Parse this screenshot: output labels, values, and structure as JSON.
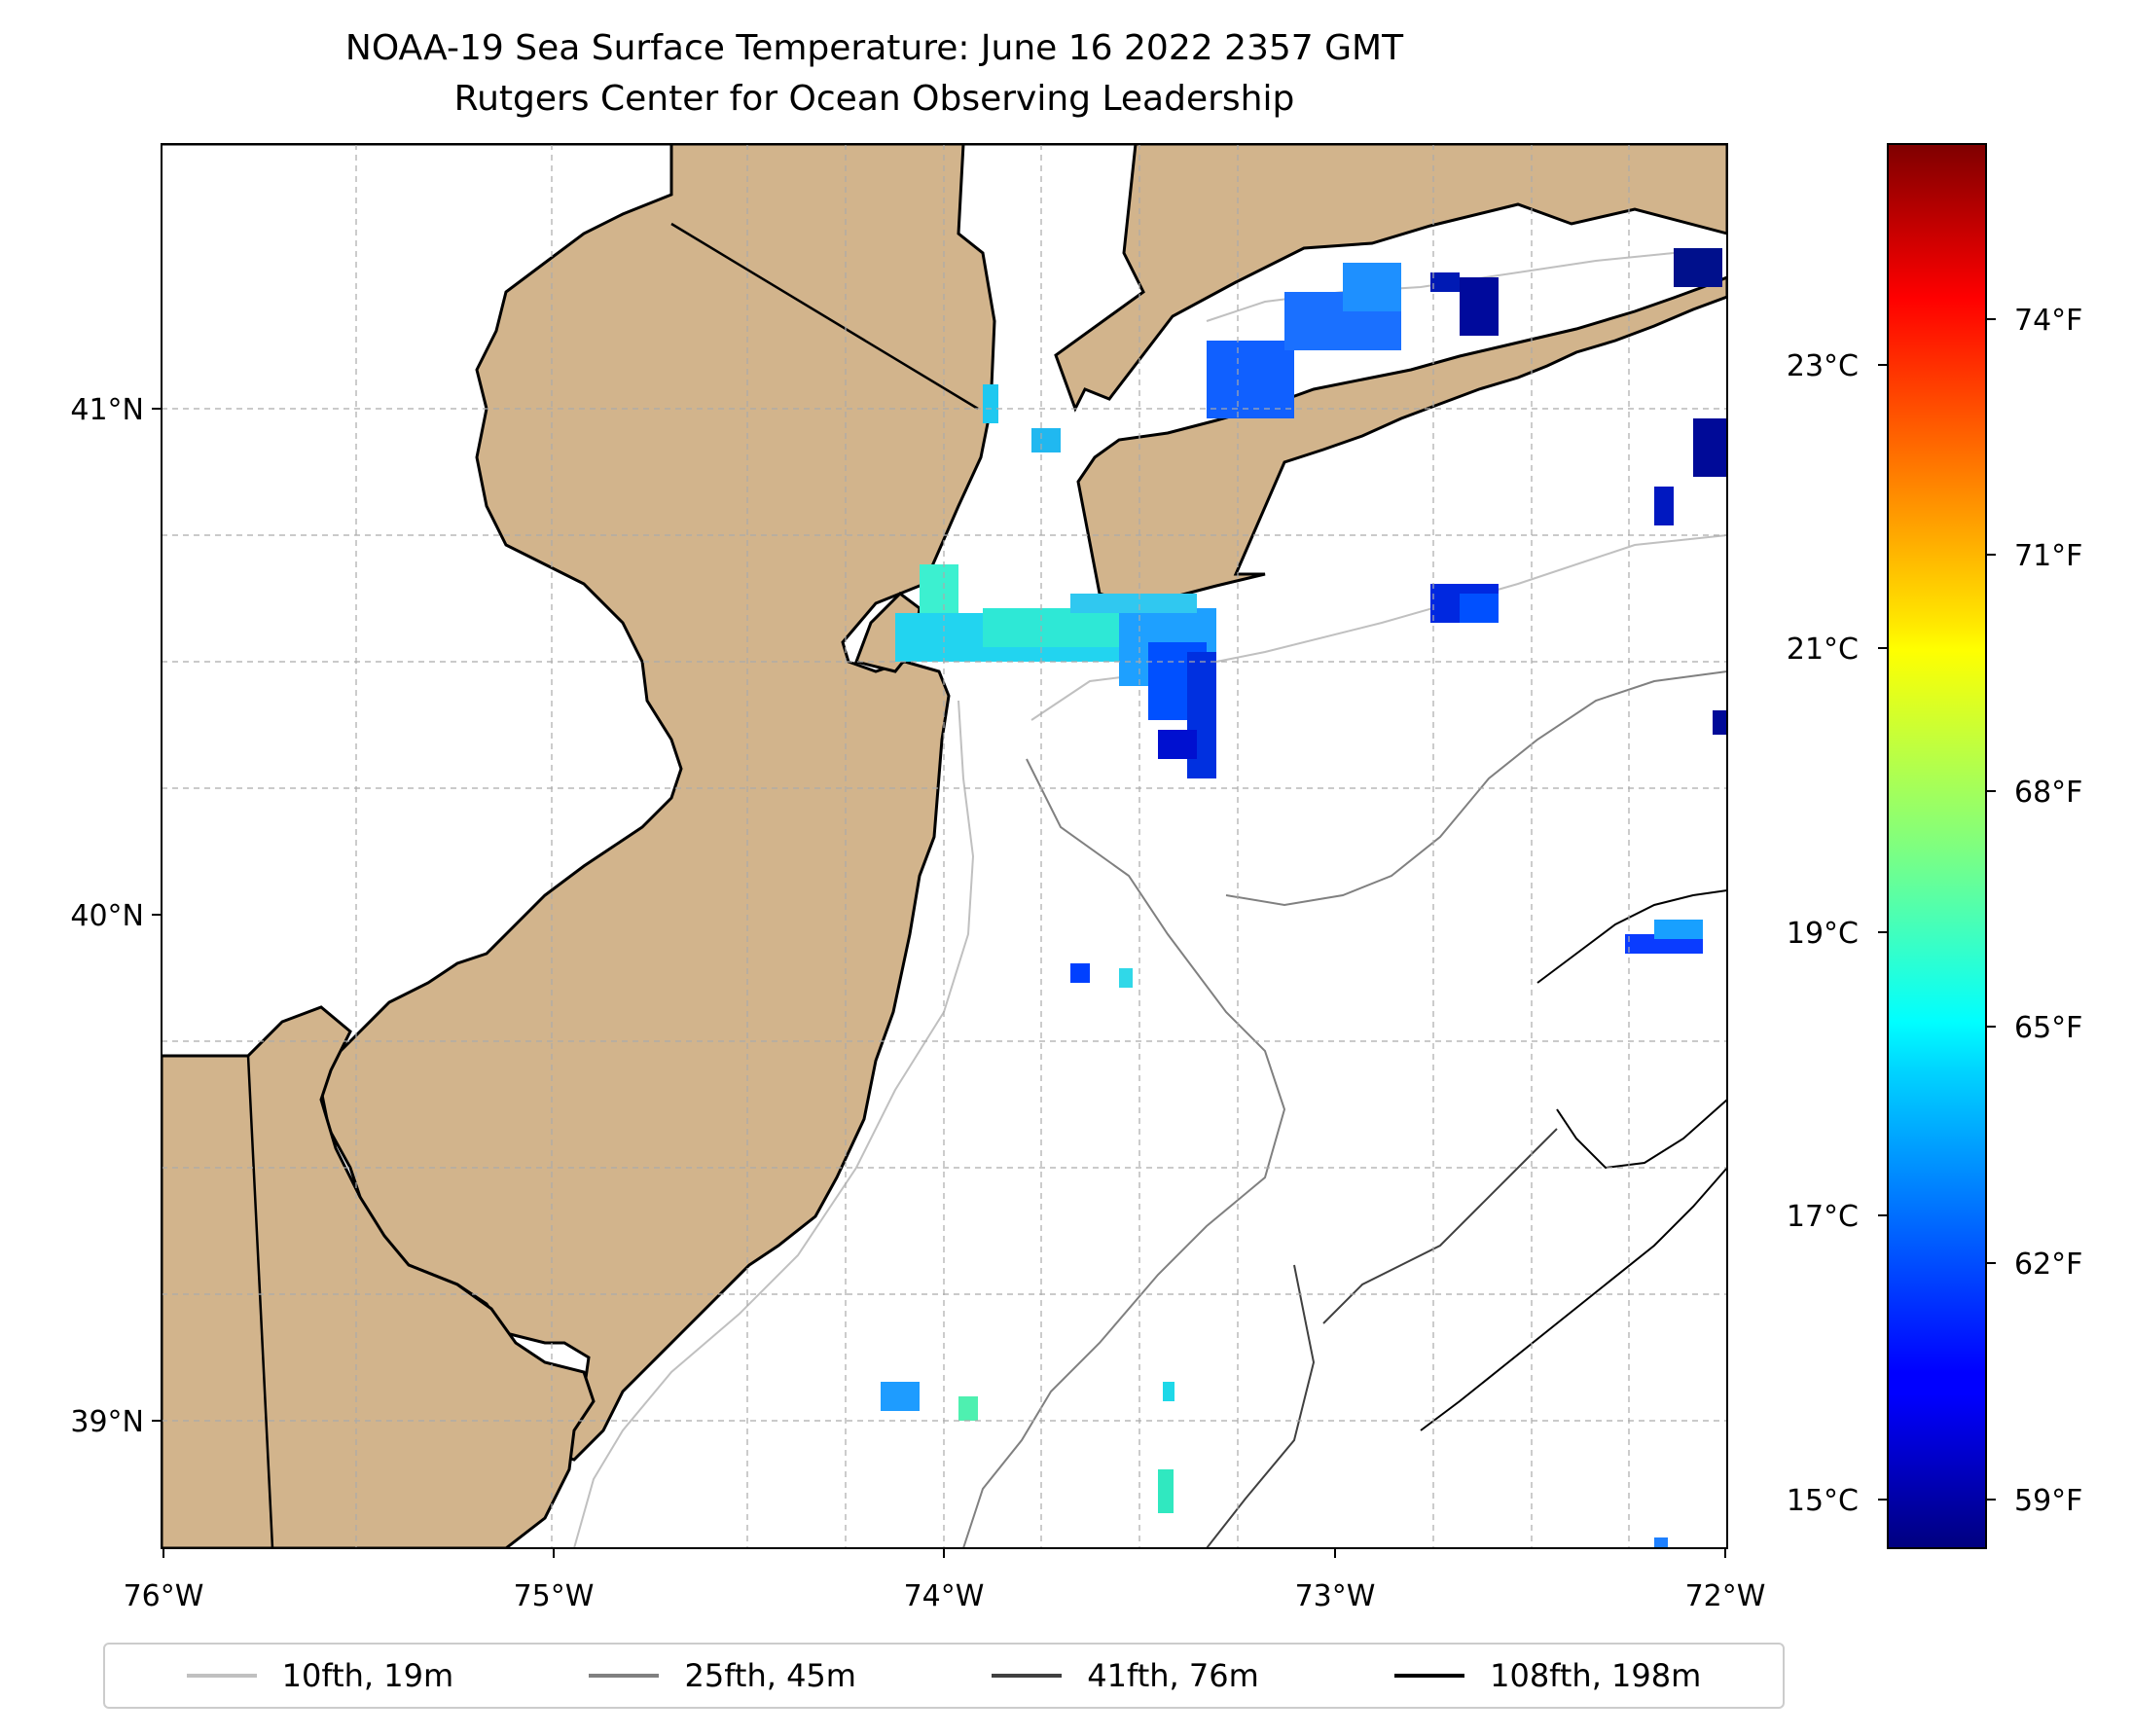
{
  "title": {
    "line1": "NOAA-19 Sea Surface Temperature: June 16 2022 2357 GMT",
    "line2": "Rutgers Center for Ocean Observing Leadership"
  },
  "map": {
    "lon_labels": [
      "76°W",
      "75°W",
      "74°W",
      "73°W",
      "72°W"
    ],
    "lat_labels": [
      "41°N",
      "40°N",
      "39°N"
    ],
    "extent": {
      "lon": [
        -76,
        -72
      ],
      "lat": [
        38.75,
        41.5
      ]
    },
    "colors": {
      "land": "#d2b48c",
      "ocean": "#ffffff",
      "grid": "#aaaaaa"
    }
  },
  "colorbar": {
    "colormap": "jet",
    "range_f": [
      58.1,
      76.2
    ],
    "celsius_labels": [
      "23°C",
      "21°C",
      "19°C",
      "17°C",
      "15°C"
    ],
    "fahrenheit_labels": [
      "74°F",
      "71°F",
      "68°F",
      "65°F",
      "62°F",
      "59°F"
    ]
  },
  "legend": {
    "items": [
      {
        "label": "10fth, 19m",
        "color": "#c0c0c0"
      },
      {
        "label": "25fth, 45m",
        "color": "#808080"
      },
      {
        "label": "41fth, 76m",
        "color": "#404040"
      },
      {
        "label": "108fth, 198m",
        "color": "#000000"
      }
    ]
  }
}
